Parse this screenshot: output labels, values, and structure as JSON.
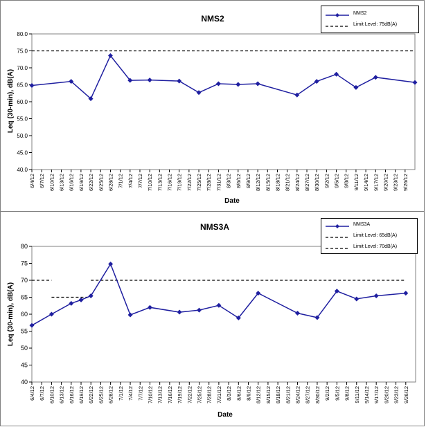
{
  "chart_data": [
    {
      "type": "line",
      "title": "NMS2",
      "xlabel": "Date",
      "ylabel": "Leq (30-min), dB(A)",
      "ylim": [
        40.0,
        80.0
      ],
      "ytick_step": 5.0,
      "ytick_decimals": 1,
      "xtick_labels": [
        "6/4/12",
        "6/7/12",
        "6/10/12",
        "6/13/12",
        "6/16/12",
        "6/19/12",
        "6/22/12",
        "6/25/12",
        "6/28/12",
        "7/1/12",
        "7/4/12",
        "7/7/12",
        "7/10/12",
        "7/13/12",
        "7/16/12",
        "7/19/12",
        "7/22/12",
        "7/25/12",
        "7/28/12",
        "7/31/12",
        "8/3/12",
        "8/6/12",
        "8/9/12",
        "8/12/12",
        "8/15/12",
        "8/18/12",
        "8/21/12",
        "8/24/12",
        "8/27/12",
        "8/30/12",
        "9/2/12",
        "9/5/12",
        "9/8/12",
        "9/11/12",
        "9/14/12",
        "9/17/12",
        "9/20/12",
        "9/23/12",
        "9/26/12"
      ],
      "series": [
        {
          "name": "NMS2",
          "color": "#1f1fa0",
          "x": [
            "6/4/12",
            "6/16/12",
            "6/22/12",
            "6/28/12",
            "7/4/12",
            "7/10/12",
            "7/19/12",
            "7/25/12",
            "7/31/12",
            "8/6/12",
            "8/12/12",
            "8/24/12",
            "8/30/12",
            "9/5/12",
            "9/11/12",
            "9/17/12",
            "9/29/12"
          ],
          "values": [
            64.8,
            66.0,
            60.9,
            73.6,
            66.3,
            66.4,
            66.1,
            62.7,
            65.3,
            65.1,
            65.3,
            62.0,
            66.0,
            68.1,
            64.2,
            67.2,
            65.7
          ]
        }
      ],
      "limits": [
        {
          "name": "Limit Level: 75dB(A)",
          "value": 75,
          "segments": [
            [
              "6/4/12",
              "9/29/12"
            ]
          ]
        }
      ],
      "legend": "top-right",
      "grid": false
    },
    {
      "type": "line",
      "title": "NMS3A",
      "xlabel": "Date",
      "ylabel": "Leq (30-min), dB(A)",
      "ylim": [
        40,
        80
      ],
      "ytick_step": 5,
      "ytick_decimals": 0,
      "xtick_labels": [
        "6/4/12",
        "6/7/12",
        "6/10/12",
        "6/13/12",
        "6/16/12",
        "6/19/12",
        "6/22/12",
        "6/25/12",
        "6/28/12",
        "7/1/12",
        "7/4/12",
        "7/7/12",
        "7/10/12",
        "7/13/12",
        "7/16/12",
        "7/19/12",
        "7/22/12",
        "7/25/12",
        "7/28/12",
        "7/31/12",
        "8/3/12",
        "8/6/12",
        "8/9/12",
        "8/12/12",
        "8/15/12",
        "8/18/12",
        "8/21/12",
        "8/24/12",
        "8/27/12",
        "8/30/12",
        "9/2/12",
        "9/5/12",
        "9/8/12",
        "9/11/12",
        "9/14/12",
        "9/17/12",
        "9/20/12",
        "9/23/12",
        "9/26/12"
      ],
      "series": [
        {
          "name": "NMS3A",
          "color": "#1f1fa0",
          "x": [
            "6/4/12",
            "6/10/12",
            "6/16/12",
            "6/19/12",
            "6/22/12",
            "6/28/12",
            "7/4/12",
            "7/10/12",
            "7/19/12",
            "7/25/12",
            "7/31/12",
            "8/6/12",
            "8/12/12",
            "8/24/12",
            "8/30/12",
            "9/5/12",
            "9/11/12",
            "9/17/12",
            "9/26/12"
          ],
          "values": [
            56.7,
            60.0,
            63.2,
            64.2,
            65.4,
            74.8,
            59.8,
            62.0,
            60.6,
            61.2,
            62.6,
            58.9,
            66.2,
            60.3,
            59.0,
            66.8,
            64.5,
            65.4,
            66.2
          ]
        }
      ],
      "limits": [
        {
          "name": "Limit Level:  65dB(A)",
          "value": 65,
          "segments": [
            [
              "6/10/12",
              "6/22/12"
            ]
          ]
        },
        {
          "name": "Limit Level:  70dB(A)",
          "value": 70,
          "segments": [
            [
              "6/4/12",
              "6/10/12"
            ],
            [
              "6/22/12",
              "9/26/12"
            ]
          ]
        }
      ],
      "legend": "top-right",
      "grid": false
    }
  ]
}
